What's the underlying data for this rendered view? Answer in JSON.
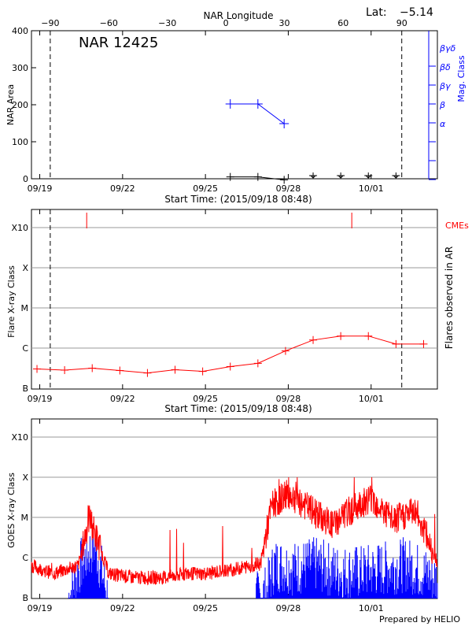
{
  "chart_data": [
    {
      "id": "nar-area",
      "type": "line",
      "title": "NAR Longitude",
      "region_label": "NAR 12425",
      "lat_label": "Lat:",
      "lat_value": "−5.14",
      "xlabel": "Start Time: (2015/09/18 08:48)",
      "ylabel": "NAR Area",
      "y2label": "Mag. Class",
      "xlim": [
        0.7,
        15.4
      ],
      "ylim": [
        0,
        400
      ],
      "date_ticks": [
        {
          "day": 1.0,
          "label": "09/19"
        },
        {
          "day": 4.0,
          "label": "09/22"
        },
        {
          "day": 7.0,
          "label": "09/25"
        },
        {
          "day": 10.0,
          "label": "09/28"
        },
        {
          "day": 13.0,
          "label": "10/01"
        }
      ],
      "y_ticks": [
        0,
        100,
        200,
        300,
        400
      ],
      "lon_ticks": [
        {
          "day": 1.38,
          "label": "−90"
        },
        {
          "day": 3.5,
          "label": "−60"
        },
        {
          "day": 5.62,
          "label": "−30"
        },
        {
          "day": 7.74,
          "label": "0"
        },
        {
          "day": 9.86,
          "label": "30"
        },
        {
          "day": 11.99,
          "label": "60"
        },
        {
          "day": 14.11,
          "label": "90"
        }
      ],
      "limb_lines": [
        1.38,
        14.11
      ],
      "mag_class_ticks": [
        "α",
        "β",
        "βγ",
        "βδ",
        "βγδ"
      ],
      "series": [
        {
          "name": "area",
          "color": "#000000",
          "x": [
            7.9,
            8.9,
            9.85
          ],
          "values": [
            5,
            5,
            -3
          ]
        },
        {
          "name": "mag-class",
          "color": "#0000ff",
          "x": [
            7.9,
            8.9,
            9.85
          ],
          "values": [
            2,
            2,
            1
          ]
        }
      ],
      "future_markers": [
        10.9,
        11.9,
        12.9,
        13.9
      ]
    },
    {
      "id": "flare-class",
      "type": "line",
      "xlabel": "Start Time: (2015/09/18 08:48)",
      "ylabel": "Flare X-ray Class",
      "y2label": "Flares observed in AR",
      "cme_label": "CMEs",
      "xlim": [
        0.7,
        15.4
      ],
      "y_ticks": [
        "B",
        "C",
        "M",
        "X",
        "X10"
      ],
      "limb_lines": [
        1.38,
        14.11
      ],
      "cme_times": [
        2.7,
        12.3
      ],
      "series": [
        {
          "name": "flare-class",
          "color": "#ff0000",
          "x": [
            0.9,
            1.9,
            2.9,
            3.9,
            4.9,
            5.9,
            6.9,
            7.9,
            8.9,
            9.9,
            10.9,
            11.9,
            12.9,
            13.9,
            14.9
          ],
          "values": [
            0.48,
            0.45,
            0.5,
            0.44,
            0.38,
            0.46,
            0.42,
            0.54,
            0.62,
            0.93,
            1.2,
            1.3,
            1.3,
            1.1,
            1.1
          ]
        }
      ]
    },
    {
      "id": "goes-class",
      "type": "line",
      "ylabel": "GOES X-ray Class",
      "credit": "Prepared by HELIO",
      "xlim": [
        0.7,
        15.4
      ],
      "y_ticks": [
        "B",
        "C",
        "M",
        "X",
        "X10"
      ],
      "series": [
        {
          "name": "goes-flux-long",
          "color": "#ff0000",
          "x": [
            0.7,
            1.5,
            2.4,
            2.8,
            3.5,
            4.4,
            5.5,
            6.3,
            7.0,
            8.0,
            9.0,
            9.4,
            10.0,
            10.8,
            11.6,
            12.3,
            13.0,
            13.8,
            14.6,
            15.4
          ],
          "values": [
            0.8,
            0.6,
            0.8,
            2.0,
            0.6,
            0.5,
            0.5,
            0.6,
            0.6,
            0.7,
            0.85,
            2.3,
            2.6,
            2.2,
            1.8,
            2.2,
            2.5,
            1.9,
            2.2,
            0.9
          ]
        },
        {
          "name": "goes-flux-short",
          "color": "#0000ff",
          "x": [
            0.7,
            2.0,
            2.5,
            3.0,
            3.5,
            8.7,
            9.2,
            9.5,
            10.2,
            11.0,
            11.8,
            12.6,
            13.5,
            14.3,
            15.4
          ],
          "values": [
            0,
            0,
            0.9,
            1.4,
            0,
            0,
            0.2,
            0.9,
            0.8,
            0.9,
            0.7,
            0.7,
            0.8,
            0.9,
            0.5
          ]
        }
      ],
      "date_ticks": [
        {
          "day": 1.0,
          "label": "09/19"
        },
        {
          "day": 4.0,
          "label": "09/22"
        },
        {
          "day": 7.0,
          "label": "09/25"
        },
        {
          "day": 10.0,
          "label": "09/28"
        },
        {
          "day": 13.0,
          "label": "10/01"
        }
      ]
    }
  ]
}
